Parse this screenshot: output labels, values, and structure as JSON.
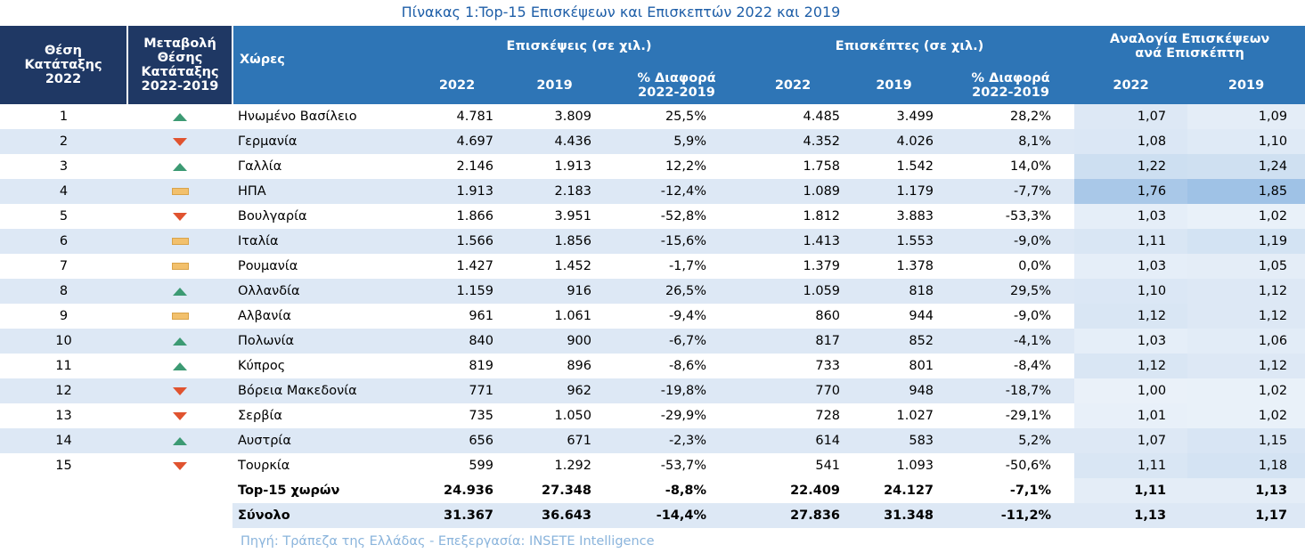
{
  "caption": "Πίνακας 1:Top-15 Επισκέψεων και Επισκεπτών 2022 και 2019",
  "headers": {
    "rank": "Θέση Κατάταξης 2022",
    "change": "Μεταβολή Θέσης Κατάταξης 2022-2019",
    "countries": "Χώρες",
    "visits_group": "Επισκέψεις (σε χιλ.)",
    "visitors_group": "Επισκέπτες (σε χιλ.)",
    "ratio_group": "Αναλογία Επισκέψεων ανά Επισκέπτη",
    "y2022": "2022",
    "y2019": "2019",
    "pct_diff": "% Διαφορά 2022-2019"
  },
  "rows": [
    {
      "rank": "1",
      "change": "up",
      "country": "Ηνωμένο Βασίλειο",
      "v22": "4.781",
      "v19": "3.809",
      "vd": "25,5%",
      "p22": "4.485",
      "p19": "3.499",
      "pd": "28,2%",
      "r22": "1,07",
      "r19": "1,09",
      "r22c": "#dde8f5",
      "r19c": "#e4edf7"
    },
    {
      "rank": "2",
      "change": "down",
      "country": "Γερμανία",
      "v22": "4.697",
      "v19": "4.436",
      "vd": "5,9%",
      "p22": "4.352",
      "p19": "4.026",
      "pd": "8,1%",
      "r22": "1,08",
      "r19": "1,10",
      "r22c": "#dbe7f5",
      "r19c": "#dfeaf6"
    },
    {
      "rank": "3",
      "change": "up",
      "country": "Γαλλία",
      "v22": "2.146",
      "v19": "1.913",
      "vd": "12,2%",
      "p22": "1.758",
      "p19": "1.542",
      "pd": "14,0%",
      "r22": "1,22",
      "r19": "1,24",
      "r22c": "#cddff1",
      "r19c": "#cfe0f1"
    },
    {
      "rank": "4",
      "change": "same",
      "country": "ΗΠΑ",
      "v22": "1.913",
      "v19": "2.183",
      "vd": "-12,4%",
      "p22": "1.089",
      "p19": "1.179",
      "pd": "-7,7%",
      "r22": "1,76",
      "r19": "1,85",
      "r22c": "#a9c8e8",
      "r19c": "#9fc2e6"
    },
    {
      "rank": "5",
      "change": "down",
      "country": "Βουλγαρία",
      "v22": "1.866",
      "v19": "3.951",
      "vd": "-52,8%",
      "p22": "1.812",
      "p19": "3.883",
      "pd": "-53,3%",
      "r22": "1,03",
      "r19": "1,02",
      "r22c": "#e5eef8",
      "r19c": "#e9f1f9"
    },
    {
      "rank": "6",
      "change": "same",
      "country": "Ιταλία",
      "v22": "1.566",
      "v19": "1.856",
      "vd": "-15,6%",
      "p22": "1.413",
      "p19": "1.553",
      "pd": "-9,0%",
      "r22": "1,11",
      "r19": "1,19",
      "r22c": "#d9e6f4",
      "r19c": "#d3e3f3"
    },
    {
      "rank": "7",
      "change": "same",
      "country": "Ρουμανία",
      "v22": "1.427",
      "v19": "1.452",
      "vd": "-1,7%",
      "p22": "1.379",
      "p19": "1.378",
      "pd": "0,0%",
      "r22": "1,03",
      "r19": "1,05",
      "r22c": "#e5eef8",
      "r19c": "#e4edf7"
    },
    {
      "rank": "8",
      "change": "up",
      "country": "Ολλανδία",
      "v22": "1.159",
      "v19": "916",
      "vd": "26,5%",
      "p22": "1.059",
      "p19": "818",
      "pd": "29,5%",
      "r22": "1,10",
      "r19": "1,12",
      "r22c": "#dbe7f5",
      "r19c": "#dde8f5"
    },
    {
      "rank": "9",
      "change": "same",
      "country": "Αλβανία",
      "v22": "961",
      "v19": "1.061",
      "vd": "-9,4%",
      "p22": "860",
      "p19": "944",
      "pd": "-9,0%",
      "r22": "1,12",
      "r19": "1,12",
      "r22c": "#d9e6f4",
      "r19c": "#dde8f5"
    },
    {
      "rank": "10",
      "change": "up",
      "country": "Πολωνία",
      "v22": "840",
      "v19": "900",
      "vd": "-6,7%",
      "p22": "817",
      "p19": "852",
      "pd": "-4,1%",
      "r22": "1,03",
      "r19": "1,06",
      "r22c": "#e5eef8",
      "r19c": "#e2ecf7"
    },
    {
      "rank": "11",
      "change": "up",
      "country": "Κύπρος",
      "v22": "819",
      "v19": "896",
      "vd": "-8,6%",
      "p22": "733",
      "p19": "801",
      "pd": "-8,4%",
      "r22": "1,12",
      "r19": "1,12",
      "r22c": "#d9e6f4",
      "r19c": "#dde8f5"
    },
    {
      "rank": "12",
      "change": "down",
      "country": "Βόρεια Μακεδονία",
      "v22": "771",
      "v19": "962",
      "vd": "-19,8%",
      "p22": "770",
      "p19": "948",
      "pd": "-18,7%",
      "r22": "1,00",
      "r19": "1,02",
      "r22c": "#eaf1f9",
      "r19c": "#e9f1f9"
    },
    {
      "rank": "13",
      "change": "down",
      "country": "Σερβία",
      "v22": "735",
      "v19": "1.050",
      "vd": "-29,9%",
      "p22": "728",
      "p19": "1.027",
      "pd": "-29,1%",
      "r22": "1,01",
      "r19": "1,02",
      "r22c": "#e8f0f9",
      "r19c": "#e9f1f9"
    },
    {
      "rank": "14",
      "change": "up",
      "country": "Αυστρία",
      "v22": "656",
      "v19": "671",
      "vd": "-2,3%",
      "p22": "614",
      "p19": "583",
      "pd": "5,2%",
      "r22": "1,07",
      "r19": "1,15",
      "r22c": "#dde8f5",
      "r19c": "#d8e5f4"
    },
    {
      "rank": "15",
      "change": "down",
      "country": "Τουρκία",
      "v22": "599",
      "v19": "1.292",
      "vd": "-53,7%",
      "p22": "541",
      "p19": "1.093",
      "pd": "-50,6%",
      "r22": "1,11",
      "r19": "1,18",
      "r22c": "#d9e6f4",
      "r19c": "#d4e3f3"
    }
  ],
  "totals": [
    {
      "country": "Top-15 χωρών",
      "v22": "24.936",
      "v19": "27.348",
      "vd": "-8,8%",
      "p22": "22.409",
      "p19": "24.127",
      "pd": "-7,1%",
      "r22": "1,11",
      "r19": "1,13"
    },
    {
      "country": "Σύνολο",
      "v22": "31.367",
      "v19": "36.643",
      "vd": "-14,4%",
      "p22": "27.836",
      "p19": "31.348",
      "pd": "-11,2%",
      "r22": "1,13",
      "r19": "1,17"
    }
  ],
  "colors": {
    "header": "#2e75b6",
    "header_dark": "#1f3864",
    "alt_row": "#dde8f5",
    "up": "#3c9a73",
    "down": "#e0532f",
    "same": "#f2c06c"
  },
  "source": "Πηγή: Τράπεζα της Ελλάδας - Επεξεργασία: INSETE Intelligence"
}
